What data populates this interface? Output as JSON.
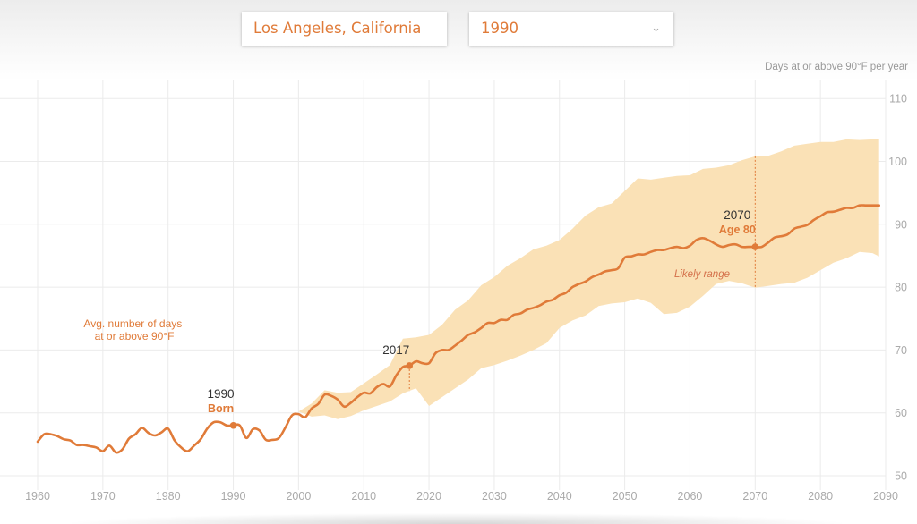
{
  "controls": {
    "location": "Los Angeles, California",
    "year": "1990",
    "year_chevron_icon": "chevron-down-icon"
  },
  "chart_data": {
    "type": "line",
    "ylabel": "Days at or above 90°F per year",
    "series_label": "Avg. number of days at or above 90°F",
    "band_label": "Likely range",
    "xlim": [
      1958,
      2090
    ],
    "ylim": [
      48,
      112
    ],
    "x_ticks": [
      1960,
      1970,
      1980,
      1990,
      2000,
      2010,
      2020,
      2030,
      2040,
      2050,
      2060,
      2070,
      2080,
      2090
    ],
    "y_ticks": [
      50,
      60,
      70,
      80,
      90,
      100,
      110
    ],
    "grid": true,
    "colors": {
      "line": "#e07b39",
      "band": "#fae1b6",
      "grid": "#ebebeb"
    },
    "series": [
      {
        "values": [
          [
            1960,
            55.4
          ],
          [
            1961,
            56.6
          ],
          [
            1962,
            56.6
          ],
          [
            1963,
            56.3
          ],
          [
            1964,
            55.8
          ],
          [
            1965,
            55.6
          ],
          [
            1966,
            54.9
          ],
          [
            1967,
            54.9
          ],
          [
            1968,
            54.7
          ],
          [
            1969,
            54.5
          ],
          [
            1970,
            53.9
          ],
          [
            1971,
            54.8
          ],
          [
            1972,
            53.7
          ],
          [
            1973,
            54.2
          ],
          [
            1974,
            55.9
          ],
          [
            1975,
            56.6
          ],
          [
            1976,
            57.6
          ],
          [
            1977,
            56.8
          ],
          [
            1978,
            56.4
          ],
          [
            1979,
            56.9
          ],
          [
            1980,
            57.5
          ],
          [
            1981,
            55.6
          ],
          [
            1982,
            54.5
          ],
          [
            1983,
            53.9
          ],
          [
            1984,
            54.8
          ],
          [
            1985,
            55.8
          ],
          [
            1986,
            57.5
          ],
          [
            1987,
            58.5
          ],
          [
            1988,
            58.5
          ],
          [
            1989,
            58.0
          ],
          [
            1990,
            58.0
          ],
          [
            1991,
            58.0
          ],
          [
            1992,
            56.0
          ],
          [
            1993,
            57.4
          ],
          [
            1994,
            57.2
          ],
          [
            1995,
            55.7
          ],
          [
            1996,
            55.7
          ],
          [
            1997,
            56.0
          ],
          [
            1998,
            57.7
          ],
          [
            1999,
            59.6
          ],
          [
            2000,
            59.8
          ],
          [
            2001,
            59.3
          ],
          [
            2002,
            60.7
          ],
          [
            2003,
            61.4
          ],
          [
            2004,
            62.9
          ],
          [
            2005,
            62.7
          ],
          [
            2006,
            62.1
          ],
          [
            2007,
            61.0
          ],
          [
            2008,
            61.6
          ],
          [
            2009,
            62.5
          ],
          [
            2010,
            63.2
          ],
          [
            2011,
            63.1
          ],
          [
            2012,
            64.1
          ],
          [
            2013,
            64.6
          ],
          [
            2014,
            64.2
          ],
          [
            2015,
            66.0
          ],
          [
            2016,
            67.3
          ],
          [
            2017,
            67.5
          ],
          [
            2018,
            68.2
          ],
          [
            2019,
            67.9
          ],
          [
            2020,
            67.9
          ],
          [
            2021,
            69.5
          ],
          [
            2022,
            70.0
          ],
          [
            2023,
            70.0
          ],
          [
            2024,
            70.7
          ],
          [
            2025,
            71.5
          ],
          [
            2026,
            72.4
          ],
          [
            2027,
            72.8
          ],
          [
            2028,
            73.5
          ],
          [
            2029,
            74.3
          ],
          [
            2030,
            74.3
          ],
          [
            2031,
            74.8
          ],
          [
            2032,
            74.8
          ],
          [
            2033,
            75.6
          ],
          [
            2034,
            75.8
          ],
          [
            2035,
            76.4
          ],
          [
            2036,
            76.7
          ],
          [
            2037,
            77.1
          ],
          [
            2038,
            77.7
          ],
          [
            2039,
            78.0
          ],
          [
            2040,
            78.7
          ],
          [
            2041,
            79.1
          ],
          [
            2042,
            80.0
          ],
          [
            2043,
            80.5
          ],
          [
            2044,
            80.9
          ],
          [
            2045,
            81.6
          ],
          [
            2046,
            82.0
          ],
          [
            2047,
            82.5
          ],
          [
            2048,
            82.7
          ],
          [
            2049,
            83.0
          ],
          [
            2050,
            84.7
          ],
          [
            2051,
            84.9
          ],
          [
            2052,
            85.2
          ],
          [
            2053,
            85.2
          ],
          [
            2054,
            85.6
          ],
          [
            2055,
            85.9
          ],
          [
            2056,
            85.9
          ],
          [
            2057,
            86.2
          ],
          [
            2058,
            86.4
          ],
          [
            2059,
            86.2
          ],
          [
            2060,
            86.6
          ],
          [
            2061,
            87.5
          ],
          [
            2062,
            87.8
          ],
          [
            2063,
            87.4
          ],
          [
            2064,
            86.8
          ],
          [
            2065,
            86.4
          ],
          [
            2066,
            86.7
          ],
          [
            2067,
            86.8
          ],
          [
            2068,
            86.4
          ],
          [
            2069,
            86.4
          ],
          [
            2070,
            86.4
          ],
          [
            2071,
            86.4
          ],
          [
            2072,
            87.1
          ],
          [
            2073,
            87.9
          ],
          [
            2074,
            88.1
          ],
          [
            2075,
            88.4
          ],
          [
            2076,
            89.3
          ],
          [
            2077,
            89.6
          ],
          [
            2078,
            89.9
          ],
          [
            2079,
            90.7
          ],
          [
            2080,
            91.3
          ],
          [
            2081,
            91.9
          ],
          [
            2082,
            92.0
          ],
          [
            2083,
            92.3
          ],
          [
            2084,
            92.6
          ],
          [
            2085,
            92.6
          ],
          [
            2086,
            93.0
          ],
          [
            2087,
            93.0
          ],
          [
            2088,
            93.0
          ],
          [
            2089,
            93.0
          ]
        ]
      }
    ],
    "band": [
      [
        2000,
        60.2,
        60.2
      ],
      [
        2002,
        61.5,
        59.4
      ],
      [
        2004,
        63.6,
        59.6
      ],
      [
        2006,
        63.2,
        59.0
      ],
      [
        2008,
        63.3,
        59.5
      ],
      [
        2010,
        64.7,
        60.4
      ],
      [
        2012,
        66.1,
        61.1
      ],
      [
        2014,
        67.6,
        61.8
      ],
      [
        2016,
        71.8,
        63.1
      ],
      [
        2018,
        72.0,
        63.9
      ],
      [
        2020,
        72.4,
        61.1
      ],
      [
        2022,
        74.0,
        62.5
      ],
      [
        2024,
        76.4,
        63.9
      ],
      [
        2026,
        77.9,
        65.3
      ],
      [
        2028,
        80.3,
        67.1
      ],
      [
        2030,
        81.6,
        67.6
      ],
      [
        2032,
        83.4,
        68.3
      ],
      [
        2034,
        84.6,
        69.1
      ],
      [
        2036,
        86.0,
        70.0
      ],
      [
        2038,
        86.6,
        71.1
      ],
      [
        2040,
        87.5,
        73.5
      ],
      [
        2042,
        89.3,
        74.7
      ],
      [
        2044,
        91.4,
        75.5
      ],
      [
        2046,
        92.7,
        77.0
      ],
      [
        2048,
        93.3,
        77.4
      ],
      [
        2050,
        95.3,
        77.6
      ],
      [
        2052,
        97.3,
        78.2
      ],
      [
        2054,
        97.1,
        77.5
      ],
      [
        2056,
        97.4,
        75.7
      ],
      [
        2058,
        97.7,
        75.9
      ],
      [
        2060,
        97.8,
        76.9
      ],
      [
        2062,
        98.8,
        78.6
      ],
      [
        2064,
        99.0,
        80.5
      ],
      [
        2066,
        99.4,
        81.0
      ],
      [
        2068,
        100.2,
        80.6
      ],
      [
        2070,
        100.8,
        79.9
      ],
      [
        2072,
        100.9,
        80.2
      ],
      [
        2074,
        101.6,
        80.5
      ],
      [
        2076,
        102.5,
        80.7
      ],
      [
        2078,
        102.8,
        81.5
      ],
      [
        2080,
        103.1,
        82.7
      ],
      [
        2082,
        103.1,
        83.9
      ],
      [
        2084,
        103.5,
        84.6
      ],
      [
        2086,
        103.4,
        85.6
      ],
      [
        2088,
        103.5,
        85.4
      ],
      [
        2089,
        103.6,
        84.9
      ]
    ],
    "annotations": [
      {
        "year": "1990",
        "label": "Born",
        "x": 1990,
        "y": 58.0
      },
      {
        "year": "2017",
        "label": "",
        "x": 2017,
        "y": 67.5
      },
      {
        "year": "2070",
        "label": "Age 80",
        "x": 2070,
        "y": 86.4
      }
    ]
  }
}
